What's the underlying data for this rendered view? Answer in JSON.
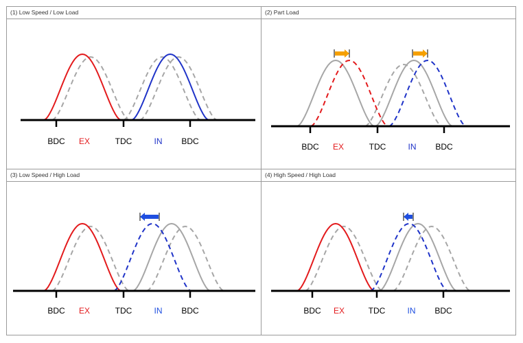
{
  "colors": {
    "exhaust": "#e31a1c",
    "intake": "#1f33c8",
    "reference": "#a6a6a6",
    "arrow_orange": "#f5a000",
    "arrow_blue": "#1f4fe0",
    "axis": "#000000",
    "label_text": "#000000"
  },
  "axis_labels": {
    "bdc_left": "BDC",
    "ex": "EX",
    "tdc": "TDC",
    "in": "IN",
    "bdc_right": "BDC"
  },
  "panels": [
    {
      "title": "(1) Low Speed / Low Load",
      "ex_shift": 0,
      "in_shift": 0,
      "ex_style": "solid",
      "in_style": "solid",
      "in_label_color": "#1f33c8",
      "arrows": []
    },
    {
      "title": "(2) Part Load",
      "ex_shift": 20,
      "in_shift": 15,
      "ex_style": "dashed",
      "in_style": "dashed",
      "in_label_color": "#1f33c8",
      "arrows": [
        {
          "target": "exhaust",
          "direction": "right",
          "color": "#f5a000"
        },
        {
          "target": "intake",
          "direction": "right",
          "color": "#f5a000"
        }
      ]
    },
    {
      "title": "(3) Low Speed / High Load",
      "ex_shift": 0,
      "in_shift": -28,
      "ex_style": "solid",
      "in_style": "dashed",
      "in_label_color": "#1f4fe0",
      "arrows": [
        {
          "target": "intake",
          "direction": "left",
          "color": "#1f4fe0"
        }
      ]
    },
    {
      "title": "(4) High Speed / High Load",
      "ex_shift": 0,
      "in_shift": -13,
      "ex_style": "solid",
      "in_style": "dashed",
      "in_label_color": "#1f4fe0",
      "arrows": [
        {
          "target": "intake",
          "direction": "left",
          "color": "#1f4fe0"
        }
      ]
    }
  ]
}
